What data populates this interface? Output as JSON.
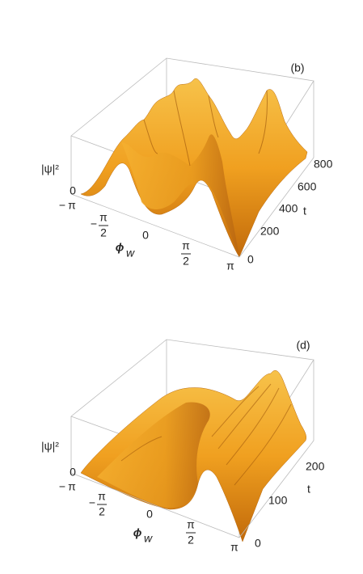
{
  "panels": [
    {
      "label": "(b)",
      "z_axis_label": "|ψ|²",
      "z_ticks": [
        "0"
      ],
      "x_axis_label": {
        "base": "ϕ",
        "sub": "w"
      },
      "x_ticks": [
        {
          "sign": "−",
          "num": "π"
        },
        {
          "sign": "−",
          "num": "π",
          "den": "2"
        },
        {
          "num": "0"
        },
        {
          "num": "π",
          "den": "2"
        },
        {
          "num": "π"
        }
      ],
      "y_axis_label": "t",
      "y_ticks": [
        "0",
        "200",
        "400",
        "600",
        "800"
      ]
    },
    {
      "label": "(d)",
      "z_axis_label": "|ψ|²",
      "z_ticks": [
        "0"
      ],
      "x_axis_label": {
        "base": "ϕ",
        "sub": "w"
      },
      "x_ticks": [
        {
          "sign": "−",
          "num": "π"
        },
        {
          "sign": "−",
          "num": "π",
          "den": "2"
        },
        {
          "num": "0"
        },
        {
          "num": "π",
          "den": "2"
        },
        {
          "num": "π"
        }
      ],
      "y_axis_label": "t",
      "y_ticks": [
        "0",
        "100",
        "200"
      ]
    }
  ]
}
